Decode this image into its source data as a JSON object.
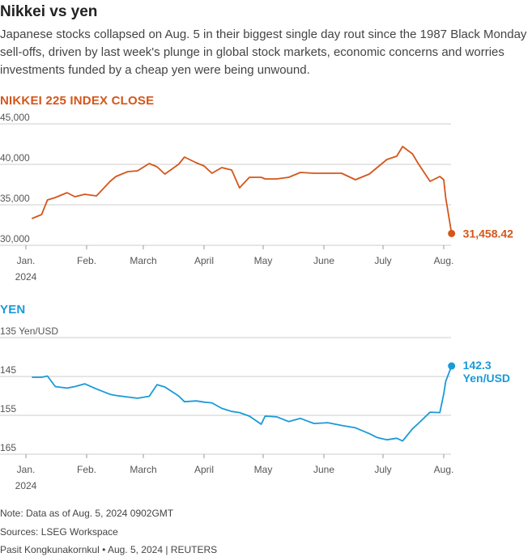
{
  "title": "Nikkei vs yen",
  "subtitle": "Japanese stocks collapsed on Aug. 5 in their biggest single day rout since the 1987 Black Monday sell-offs, driven by last week's plunge in global stock markets, economic concerns and worries investments funded by a cheap yen were being unwound.",
  "footer": {
    "note": "Note: Data as of Aug. 5, 2024 0902GMT",
    "sources": "Sources: LSEG Workspace",
    "credit": "Pasit Kongkunakornkul • Aug. 5, 2024 | REUTERS"
  },
  "colors": {
    "nikkei": "#d4561a",
    "yen": "#1a9ad8",
    "grid": "#cccccc",
    "text": "#444444"
  },
  "chart_data": [
    {
      "type": "line",
      "title": "NIKKEI 225 INDEX CLOSE",
      "month_labels": [
        "Jan.",
        "Feb.",
        "March",
        "April",
        "May",
        "June",
        "July",
        "Aug."
      ],
      "year_label": "2024",
      "y_ticks": [
        "45,000",
        "40,000",
        "35,000",
        "30,000"
      ],
      "y_tick_values": [
        45000,
        40000,
        35000,
        30000
      ],
      "ylim": [
        30000,
        45000
      ],
      "end_label": "31,458.42",
      "series": [
        {
          "x": [
            "2024-01-04",
            "2024-01-09",
            "2024-01-12",
            "2024-01-16",
            "2024-01-22",
            "2024-01-26",
            "2024-01-31",
            "2024-02-06",
            "2024-02-13",
            "2024-02-16",
            "2024-02-22",
            "2024-02-27",
            "2024-03-04",
            "2024-03-08",
            "2024-03-12",
            "2024-03-19",
            "2024-03-22",
            "2024-03-28",
            "2024-04-01",
            "2024-04-05",
            "2024-04-10",
            "2024-04-15",
            "2024-04-19",
            "2024-04-24",
            "2024-04-30",
            "2024-05-02",
            "2024-05-08",
            "2024-05-14",
            "2024-05-20",
            "2024-05-27",
            "2024-06-03",
            "2024-06-10",
            "2024-06-17",
            "2024-06-24",
            "2024-06-28",
            "2024-07-03",
            "2024-07-08",
            "2024-07-11",
            "2024-07-16",
            "2024-07-19",
            "2024-07-25",
            "2024-07-30",
            "2024-08-01",
            "2024-08-02",
            "2024-08-05"
          ],
          "values": [
            33300,
            33800,
            35600,
            35900,
            36500,
            36000,
            36300,
            36100,
            37900,
            38500,
            39100,
            39200,
            40100,
            39700,
            38800,
            40000,
            40900,
            40200,
            39800,
            38900,
            39600,
            39300,
            37100,
            38400,
            38400,
            38200,
            38200,
            38400,
            39000,
            38900,
            38900,
            38900,
            38100,
            38800,
            39600,
            40600,
            41000,
            42200,
            41300,
            40100,
            37900,
            38500,
            38100,
            35900,
            31458.42
          ]
        }
      ]
    },
    {
      "type": "line",
      "title": "YEN",
      "month_labels": [
        "Jan.",
        "Feb.",
        "March",
        "April",
        "May",
        "June",
        "July",
        "Aug."
      ],
      "year_label": "2024",
      "y_ticks": [
        "135 Yen/USD",
        "145",
        "155",
        "165"
      ],
      "y_tick_values": [
        135,
        145,
        155,
        165
      ],
      "ylim": [
        135,
        165
      ],
      "y_inverted": true,
      "end_label_value": "142.3",
      "end_label_unit": "Yen/USD",
      "series": [
        {
          "x": [
            "2024-01-04",
            "2024-01-09",
            "2024-01-12",
            "2024-01-16",
            "2024-01-22",
            "2024-01-26",
            "2024-01-31",
            "2024-02-06",
            "2024-02-13",
            "2024-02-16",
            "2024-02-22",
            "2024-02-27",
            "2024-03-04",
            "2024-03-08",
            "2024-03-12",
            "2024-03-19",
            "2024-03-22",
            "2024-03-28",
            "2024-04-01",
            "2024-04-05",
            "2024-04-10",
            "2024-04-15",
            "2024-04-19",
            "2024-04-24",
            "2024-04-30",
            "2024-05-02",
            "2024-05-08",
            "2024-05-14",
            "2024-05-20",
            "2024-05-27",
            "2024-06-03",
            "2024-06-10",
            "2024-06-17",
            "2024-06-24",
            "2024-06-28",
            "2024-07-03",
            "2024-07-08",
            "2024-07-11",
            "2024-07-16",
            "2024-07-19",
            "2024-07-25",
            "2024-07-30",
            "2024-08-01",
            "2024-08-02",
            "2024-08-05"
          ],
          "values": [
            145.2,
            145.2,
            144.9,
            147.6,
            148.0,
            147.6,
            146.9,
            148.2,
            149.6,
            149.9,
            150.3,
            150.6,
            150.1,
            147.1,
            147.7,
            150.0,
            151.5,
            151.3,
            151.6,
            151.8,
            153.2,
            154.0,
            154.3,
            155.2,
            157.3,
            155.2,
            155.4,
            156.6,
            155.8,
            157.1,
            156.9,
            157.6,
            158.2,
            159.7,
            160.7,
            161.3,
            160.9,
            161.6,
            158.5,
            157.1,
            154.2,
            154.3,
            149.5,
            146.3,
            142.3
          ]
        }
      ]
    }
  ]
}
